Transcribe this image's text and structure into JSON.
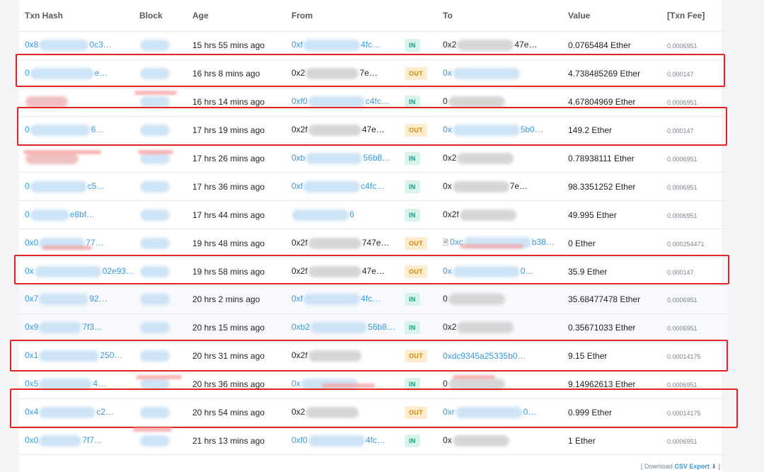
{
  "headers": {
    "txn_hash": "Txn Hash",
    "block": "Block",
    "age": "Age",
    "from": "From",
    "to": "To",
    "value": "Value",
    "fee": "[Txn Fee]"
  },
  "rows": [
    {
      "hash_pre": "0x8",
      "hash_suf": "0c3…",
      "age": "15 hrs 55 mins ago",
      "from_pre": "0xf",
      "from_suf": "4fc…",
      "from_link": true,
      "dir": "IN",
      "to_pre": "0x2",
      "to_suf": "47e…",
      "to_link": false,
      "value": "0.0765484 Ether",
      "fee": "0.0006951"
    },
    {
      "hash_pre": "0",
      "hash_suf": "e…",
      "age": "16 hrs 8 mins ago",
      "from_pre": "0x2",
      "from_suf": "7e…",
      "from_link": false,
      "dir": "OUT",
      "to_pre": "0x",
      "to_suf": "",
      "to_link": true,
      "value": "4.738485269 Ether",
      "fee": "0.000147"
    },
    {
      "hash_pre": "",
      "hash_suf": "",
      "age": "16 hrs 14 mins ago",
      "from_pre": "0xf0",
      "from_suf": "c4fc…",
      "from_link": true,
      "dir": "IN",
      "to_pre": "0",
      "to_suf": "",
      "to_link": false,
      "value": "4.67804969 Ether",
      "fee": "0.0006951"
    },
    {
      "hash_pre": "0",
      "hash_suf": "6…",
      "age": "17 hrs 19 mins ago",
      "from_pre": "0x2f",
      "from_suf": "47e…",
      "from_link": false,
      "dir": "OUT",
      "to_pre": "0x",
      "to_suf": "5b0…",
      "to_link": true,
      "value": "149.2 Ether",
      "fee": "0.000147"
    },
    {
      "hash_pre": "",
      "hash_suf": "",
      "age": "17 hrs 26 mins ago",
      "from_pre": "0xb",
      "from_suf": "56b8…",
      "from_link": true,
      "dir": "IN",
      "to_pre": "0x2",
      "to_suf": "",
      "to_link": false,
      "value": "0.78938111 Ether",
      "fee": "0.0006951"
    },
    {
      "hash_pre": "0",
      "hash_suf": "c5…",
      "age": "17 hrs 36 mins ago",
      "from_pre": "0xf",
      "from_suf": "c4fc…",
      "from_link": true,
      "dir": "IN",
      "to_pre": "0x",
      "to_suf": "7e…",
      "to_link": false,
      "value": "98.3351252 Ether",
      "fee": "0.0006951"
    },
    {
      "hash_pre": "0",
      "hash_suf": "e8bf…",
      "age": "17 hrs 44 mins ago",
      "from_pre": "",
      "from_suf": "6",
      "from_link": true,
      "dir": "IN",
      "to_pre": "0x2f",
      "to_suf": "",
      "to_link": false,
      "value": "49.995 Ether",
      "fee": "0.0006951"
    },
    {
      "hash_pre": "0x0",
      "hash_suf": "77…",
      "age": "19 hrs 48 mins ago",
      "from_pre": "0x2f",
      "from_suf": "747e…",
      "from_link": false,
      "dir": "OUT",
      "to_pre": "0xc",
      "to_suf": "b38…",
      "to_link": true,
      "to_doc": true,
      "value": "0 Ether",
      "fee": "0.000254471"
    },
    {
      "hash_pre": "0x",
      "hash_suf": "02e93…",
      "age": "19 hrs 58 mins ago",
      "from_pre": "0x2f",
      "from_suf": "47e…",
      "from_link": false,
      "dir": "OUT",
      "to_pre": "0x",
      "to_suf": "0…",
      "to_link": true,
      "value": "35.9 Ether",
      "fee": "0.000147"
    },
    {
      "hash_pre": "0x7",
      "hash_suf": "92…",
      "age": "20 hrs 2 mins ago",
      "from_pre": "0xf",
      "from_suf": "4fc…",
      "from_link": true,
      "dir": "IN",
      "to_pre": "0",
      "to_suf": "",
      "to_link": false,
      "value": "35.68477478 Ether",
      "fee": "0.0006951"
    },
    {
      "hash_pre": "0x9",
      "hash_suf": "7f3…",
      "age": "20 hrs 15 mins ago",
      "from_pre": "0xb2",
      "from_suf": "56b8…",
      "from_link": true,
      "dir": "IN",
      "to_pre": "0x2",
      "to_suf": "",
      "to_link": false,
      "value": "0.35671033 Ether",
      "fee": "0.0006951"
    },
    {
      "hash_pre": "0x1",
      "hash_suf": "250…",
      "age": "20 hrs 31 mins ago",
      "from_pre": "0x2f",
      "from_suf": "",
      "from_link": false,
      "dir": "OUT",
      "to_pre": "0xdc9345a25335b0…",
      "to_suf": "",
      "to_link": true,
      "value": "9.15 Ether",
      "fee": "0.00014175"
    },
    {
      "hash_pre": "0x5",
      "hash_suf": "4…",
      "age": "20 hrs 36 mins ago",
      "from_pre": "0x",
      "from_suf": "",
      "from_link": true,
      "dir": "IN",
      "to_pre": "0",
      "to_suf": "",
      "to_link": false,
      "value": "9.14962613 Ether",
      "fee": "0.0006951"
    },
    {
      "hash_pre": "0x4",
      "hash_suf": "c2…",
      "age": "20 hrs 54 mins ago",
      "from_pre": "0x2",
      "from_suf": "",
      "from_link": false,
      "dir": "OUT",
      "to_pre": "0xr",
      "to_suf": "0…",
      "to_link": true,
      "value": "0.999 Ether",
      "fee": "0.00014175"
    },
    {
      "hash_pre": "0x0",
      "hash_suf": "7f7…",
      "age": "21 hrs 13 mins ago",
      "from_pre": "0xf0",
      "from_suf": "4fc…",
      "from_link": true,
      "dir": "IN",
      "to_pre": "0x",
      "to_suf": "",
      "to_link": false,
      "value": "1 Ether",
      "fee": "0.0006951"
    }
  ],
  "footer": {
    "open": "[ Download",
    "link": "CSV Export",
    "close": "]"
  },
  "colors": {
    "link": "#3498db",
    "in_badge": "#d8f3ea",
    "out_badge": "#fcebcd",
    "highlight": "#e02424"
  },
  "icons": {
    "download": "download-icon",
    "contract": "document-icon"
  }
}
